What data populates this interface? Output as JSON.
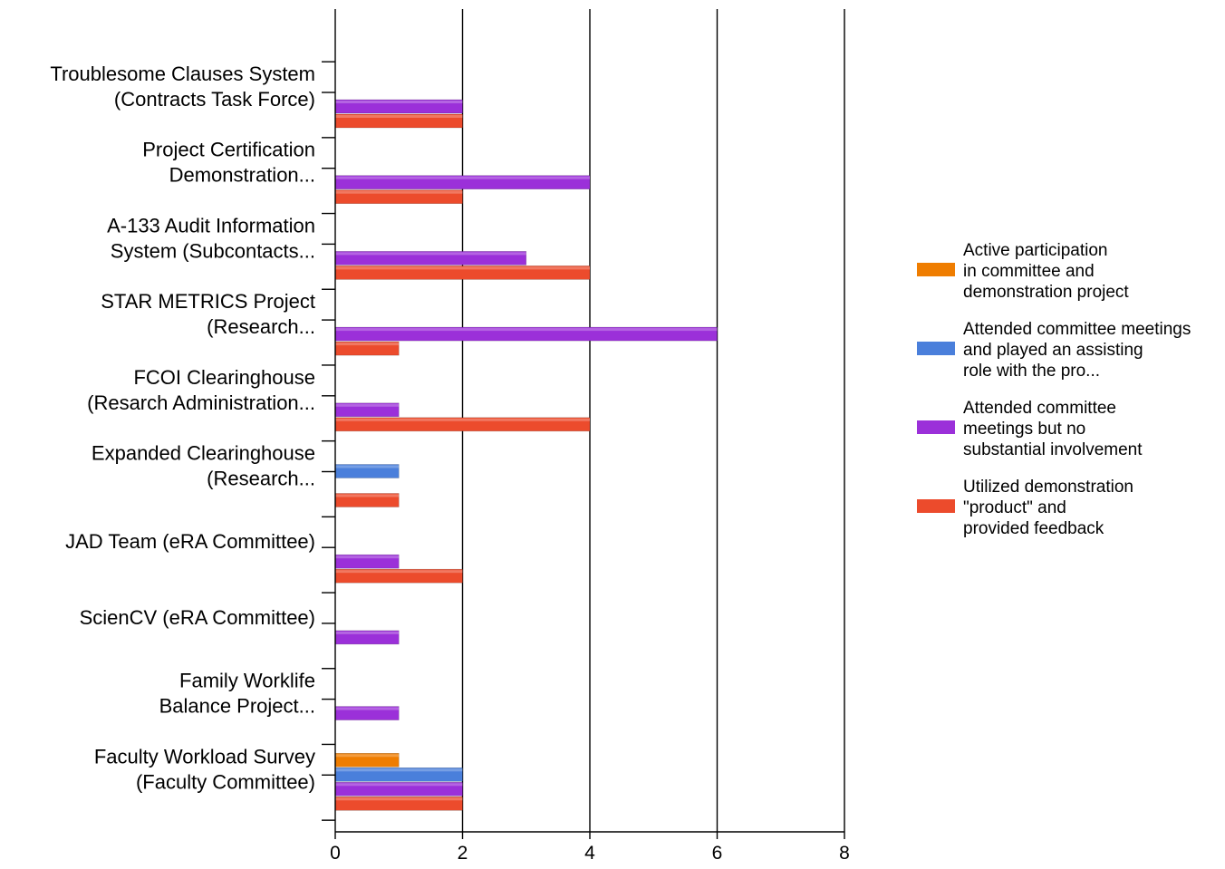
{
  "chart_data": {
    "type": "bar",
    "orientation": "horizontal",
    "categories": [
      [
        "Troublesome Clauses System",
        "(Contracts Task Force)"
      ],
      [
        "Project Certification",
        "Demonstration..."
      ],
      [
        "A-133 Audit Information",
        "System (Subcontacts..."
      ],
      [
        "STAR METRICS Project",
        "(Research..."
      ],
      [
        "FCOI Clearinghouse",
        "(Resarch Administration..."
      ],
      [
        "Expanded Clearinghouse",
        "(Research..."
      ],
      [
        "JAD Team (eRA Committee)"
      ],
      [
        "ScienCV (eRA Committee)"
      ],
      [
        "Family Worklife",
        "Balance Project..."
      ],
      [
        "Faculty Workload Survey",
        "(Faculty Committee)"
      ]
    ],
    "series": [
      {
        "name": [
          "Active participation",
          "in committee and",
          "demonstration project"
        ],
        "color": "#ef7d00",
        "values": [
          0,
          0,
          0,
          0,
          0,
          0,
          0,
          0,
          0,
          1
        ]
      },
      {
        "name": [
          "Attended committee meetings",
          "and played an assisting",
          "role with the pro..."
        ],
        "color": "#4a7fdb",
        "values": [
          0,
          0,
          0,
          0,
          0,
          1,
          0,
          0,
          0,
          2
        ]
      },
      {
        "name": [
          "Attended committee",
          "meetings but no",
          "substantial involvement"
        ],
        "color": "#9b30d9",
        "values": [
          2,
          4,
          3,
          6,
          1,
          0,
          1,
          1,
          1,
          2
        ]
      },
      {
        "name": [
          "Utilized demonstration",
          "\"product\" and",
          "provided feedback"
        ],
        "color": "#ec4b2c",
        "values": [
          2,
          2,
          4,
          1,
          4,
          1,
          2,
          0,
          0,
          2
        ]
      }
    ],
    "xlim": [
      0,
      8
    ],
    "xticks": [
      "0",
      "2",
      "4",
      "6",
      "8"
    ],
    "grid": true,
    "legend_position": "right"
  }
}
